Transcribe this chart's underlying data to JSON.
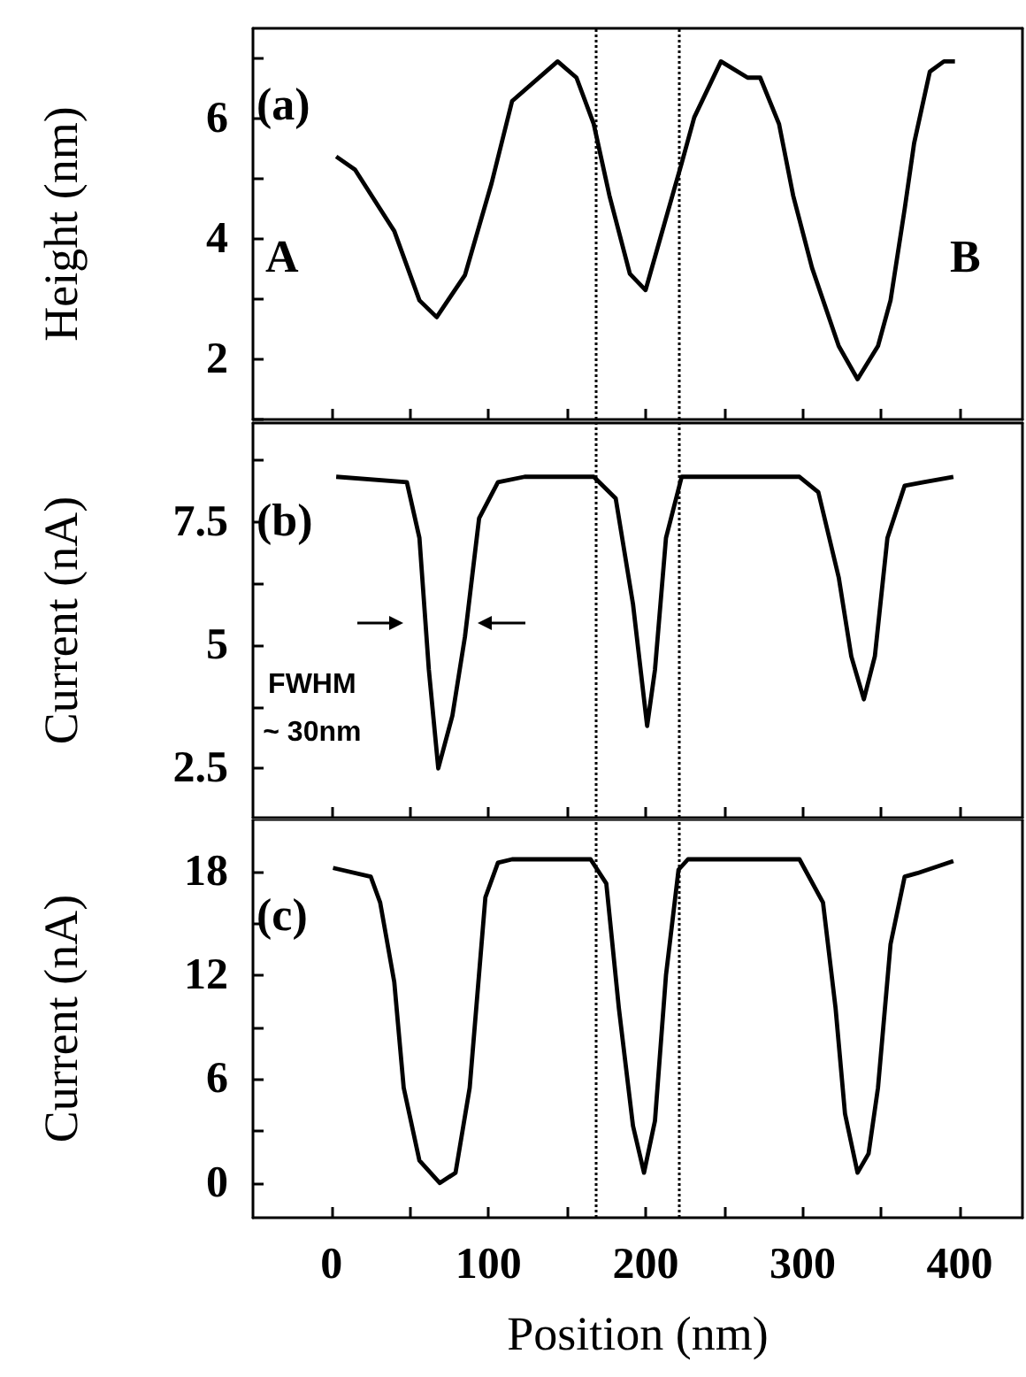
{
  "chart_data": [
    {
      "type": "line",
      "ylabel": "Height (nm)",
      "xlim": [
        -50,
        440
      ],
      "xticks": [
        0,
        {
          "value": 50,
          "label": null
        },
        100,
        {
          "value": 150,
          "label": null
        },
        200,
        {
          "value": 250,
          "label": null
        },
        300,
        {
          "value": 350,
          "label": null
        },
        400
      ],
      "ylim": [
        1,
        7.5
      ],
      "yticks": [
        {
          "value": 1,
          "label": null
        },
        2,
        {
          "value": 3,
          "label": null
        },
        4,
        {
          "value": 5,
          "label": null
        },
        6,
        {
          "value": 7,
          "label": null
        }
      ],
      "tick_labels": "y",
      "grid": false,
      "marker": "none",
      "line_style": "solid",
      "series": [
        {
          "color": "#000000",
          "x": [
            3,
            15,
            40,
            56,
            67,
            85,
            102,
            115,
            144,
            156,
            167,
            177,
            190,
            200,
            210,
            223,
            231,
            248,
            265,
            273,
            285,
            294,
            306,
            323,
            335,
            348,
            356,
            365,
            371,
            381,
            390,
            397
          ],
          "values": [
            5.37,
            5.15,
            4.13,
            2.98,
            2.7,
            3.4,
            4.93,
            6.29,
            6.95,
            6.68,
            5.91,
            4.72,
            3.42,
            3.15,
            4.07,
            5.26,
            6.02,
            6.95,
            6.68,
            6.68,
            5.91,
            4.72,
            3.52,
            2.22,
            1.67,
            2.22,
            2.98,
            4.5,
            5.59,
            6.78,
            6.95,
            6.95
          ]
        }
      ],
      "ref_lines": [
        {
          "axis": "x",
          "value": 168,
          "color": "#000000",
          "line_style": "dotted"
        },
        {
          "axis": "x",
          "value": 221,
          "color": "#000000",
          "line_style": "dotted"
        }
      ],
      "annotations": [
        "(a)",
        "A",
        "B"
      ]
    },
    {
      "type": "line",
      "ylabel": "Current (nA)",
      "xlim": [
        -50,
        440
      ],
      "xticks": [
        0,
        {
          "value": 50,
          "label": null
        },
        100,
        {
          "value": 150,
          "label": null
        },
        200,
        {
          "value": 250,
          "label": null
        },
        300,
        {
          "value": 350,
          "label": null
        },
        400
      ],
      "ylim": [
        1.5,
        9.5
      ],
      "yticks": [
        2.5,
        {
          "value": 3.75,
          "label": null
        },
        5.0,
        {
          "value": 6.25,
          "label": null
        },
        7.5,
        {
          "value": 8.75,
          "label": null
        }
      ],
      "tick_labels": "y",
      "grid": false,
      "marker": "none",
      "line_style": "solid",
      "series": [
        {
          "color": "#000000",
          "x": [
            3,
            48,
            56,
            62,
            68,
            77,
            85,
            94,
            106,
            123,
            167,
            181,
            192,
            201,
            206,
            213,
            223,
            298,
            310,
            323,
            331,
            339,
            346,
            354,
            365,
            377,
            396
          ],
          "values": [
            8.41,
            8.3,
            7.17,
            4.5,
            2.5,
            3.57,
            5.17,
            7.57,
            8.3,
            8.41,
            8.41,
            7.97,
            5.83,
            3.36,
            4.5,
            7.17,
            8.41,
            8.41,
            8.1,
            6.37,
            4.77,
            3.9,
            4.77,
            7.17,
            8.23,
            8.3,
            8.41
          ]
        }
      ],
      "ref_lines": [
        {
          "axis": "x",
          "value": 168,
          "color": "#000000",
          "line_style": "dotted"
        },
        {
          "axis": "x",
          "value": 221,
          "color": "#000000",
          "line_style": "dotted"
        }
      ],
      "annotations": [
        "(b)",
        {
          "text": "FWHM ~ 30nm",
          "x": 62,
          "y": 5.46
        }
      ]
    },
    {
      "type": "line",
      "ylabel": "Current (nA)",
      "xlabel": "Position (nm)",
      "xlim": [
        -50,
        440
      ],
      "xticks": [
        0,
        {
          "value": 50,
          "label": null
        },
        100,
        {
          "value": 150,
          "label": null
        },
        200,
        {
          "value": 250,
          "label": null
        },
        300,
        {
          "value": 350,
          "label": null
        },
        400
      ],
      "ylim": [
        -2,
        21
      ],
      "yticks": [
        0,
        {
          "value": 3,
          "label": null
        },
        6,
        {
          "value": 9,
          "label": null
        },
        12,
        {
          "value": 15,
          "label": null
        },
        18
      ],
      "grid": false,
      "marker": "none",
      "line_style": "solid",
      "series": [
        {
          "color": "#000000",
          "x": [
            1,
            25,
            31,
            40,
            46,
            56,
            69,
            79,
            88,
            98,
            106,
            115,
            165,
            175,
            183,
            192,
            199,
            206,
            213,
            221,
            227,
            298,
            313,
            321,
            327,
            335,
            342,
            348,
            356,
            365,
            373,
            396
          ],
          "values": [
            18.2,
            17.7,
            16.2,
            11.6,
            5.5,
            1.3,
            0,
            0.6,
            5.5,
            16.5,
            18.5,
            18.7,
            18.7,
            17.3,
            10.1,
            3.3,
            0.6,
            3.6,
            12,
            18.1,
            18.7,
            18.7,
            16.2,
            10.1,
            4.0,
            0.6,
            1.7,
            5.5,
            13.8,
            17.7,
            17.9,
            18.6
          ]
        }
      ],
      "ref_lines": [
        {
          "axis": "x",
          "value": 168,
          "color": "#000000",
          "line_style": "dotted"
        },
        {
          "axis": "x",
          "value": 221,
          "color": "#000000",
          "line_style": "dotted"
        }
      ],
      "annotations": [
        "(c)"
      ]
    }
  ]
}
